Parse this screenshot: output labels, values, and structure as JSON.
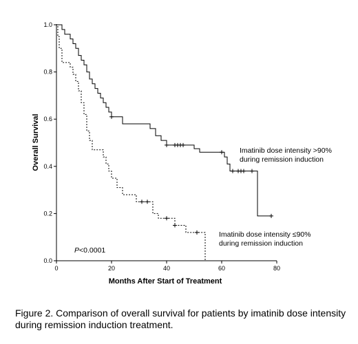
{
  "chart_data": {
    "type": "line",
    "subtype": "kaplan-meier step",
    "xlabel": "Months After Start of Treatment",
    "ylabel": "Overall Survival",
    "xlim": [
      0,
      80
    ],
    "ylim": [
      0,
      1.0
    ],
    "xticks": [
      0,
      20,
      40,
      60,
      80
    ],
    "yticks": [
      0.0,
      0.2,
      0.4,
      0.6,
      0.8,
      1.0
    ],
    "ytick_labels": [
      "0.0",
      "0.2",
      "0.4",
      "0.6",
      "0.8",
      "1.0"
    ],
    "grid": false,
    "annotations": {
      "pvalue_italic": "P",
      "pvalue_rest": "<0.0001"
    },
    "series": [
      {
        "name": "Imatinib dose intensity >90% during remission induction",
        "label_lines": [
          "Imatinib dose intensity >90%",
          "during remission induction"
        ],
        "line_style": "solid",
        "steps": [
          [
            0,
            1.0
          ],
          [
            2,
            0.98
          ],
          [
            3,
            0.96
          ],
          [
            5,
            0.94
          ],
          [
            6,
            0.92
          ],
          [
            7,
            0.9
          ],
          [
            8,
            0.87
          ],
          [
            9,
            0.85
          ],
          [
            10,
            0.83
          ],
          [
            11,
            0.8
          ],
          [
            12,
            0.77
          ],
          [
            13,
            0.75
          ],
          [
            14,
            0.73
          ],
          [
            15,
            0.71
          ],
          [
            16,
            0.69
          ],
          [
            17,
            0.67
          ],
          [
            18,
            0.65
          ],
          [
            19,
            0.63
          ],
          [
            20,
            0.61
          ],
          [
            24,
            0.58
          ],
          [
            34,
            0.56
          ],
          [
            36,
            0.53
          ],
          [
            38,
            0.51
          ],
          [
            40,
            0.49
          ],
          [
            50,
            0.475
          ],
          [
            52,
            0.46
          ],
          [
            61,
            0.44
          ],
          [
            62,
            0.41
          ],
          [
            63,
            0.38
          ],
          [
            73,
            0.19
          ],
          [
            78,
            0.19
          ]
        ],
        "censor_times": [
          20,
          40,
          43,
          44,
          45,
          46,
          60,
          64,
          66,
          67,
          68,
          71,
          78
        ]
      },
      {
        "name": "Imatinib dose intensity ≤90% during remission induction",
        "label_lines": [
          "Imatinib dose intensity ≤90%",
          "during remission induction"
        ],
        "line_style": "dashed",
        "steps": [
          [
            0,
            1.0
          ],
          [
            0.5,
            0.95
          ],
          [
            1,
            0.9
          ],
          [
            2,
            0.84
          ],
          [
            5,
            0.82
          ],
          [
            6,
            0.79
          ],
          [
            7,
            0.76
          ],
          [
            8,
            0.72
          ],
          [
            9,
            0.67
          ],
          [
            10,
            0.62
          ],
          [
            11,
            0.55
          ],
          [
            12,
            0.51
          ],
          [
            13,
            0.47
          ],
          [
            17,
            0.44
          ],
          [
            18,
            0.41
          ],
          [
            19,
            0.38
          ],
          [
            20,
            0.35
          ],
          [
            22,
            0.31
          ],
          [
            24,
            0.28
          ],
          [
            29,
            0.25
          ],
          [
            35,
            0.2
          ],
          [
            37,
            0.18
          ],
          [
            43,
            0.15
          ],
          [
            47,
            0.12
          ],
          [
            53,
            0.12
          ],
          [
            54,
            0.0
          ]
        ],
        "censor_times": [
          31,
          33,
          40,
          43,
          51
        ]
      }
    ]
  },
  "caption": {
    "line1": "Figure 2. Comparison of overall survival  for patients by imatinib  dose intensity",
    "line2": "during remission induction treatment."
  }
}
